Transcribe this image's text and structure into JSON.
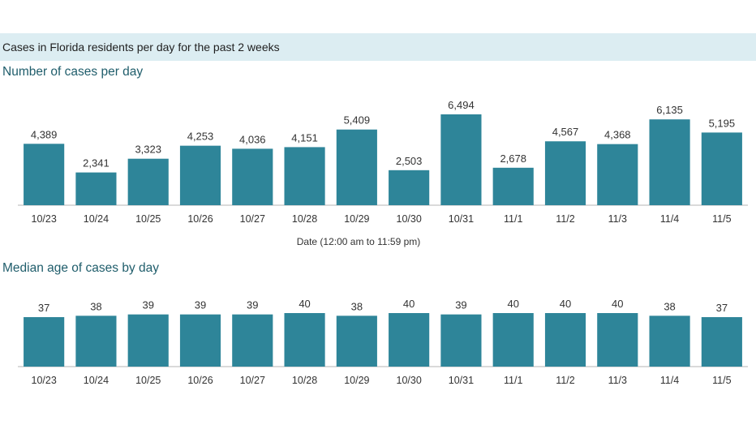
{
  "header": {
    "title": "Cases in Florida residents per day for the past 2 weeks"
  },
  "colors": {
    "bar": "#2e8599",
    "band": "#dcedf2",
    "title": "#1f5d6b",
    "axis": "#b5b5b5"
  },
  "chart_data": [
    {
      "type": "bar",
      "title": "Number of cases per day",
      "xlabel": "Date (12:00 am to 11:59 pm)",
      "ylabel": "",
      "categories": [
        "10/23",
        "10/24",
        "10/25",
        "10/26",
        "10/27",
        "10/28",
        "10/29",
        "10/30",
        "10/31",
        "11/1",
        "11/2",
        "11/3",
        "11/4",
        "11/5"
      ],
      "values": [
        4389,
        2341,
        3323,
        4253,
        4036,
        4151,
        5409,
        2503,
        6494,
        2678,
        4567,
        4368,
        6135,
        5195
      ],
      "value_labels": [
        "4,389",
        "2,341",
        "3,323",
        "4,253",
        "4,036",
        "4,151",
        "5,409",
        "2,503",
        "6,494",
        "2,678",
        "4,567",
        "4,368",
        "6,135",
        "5,195"
      ],
      "ylim": [
        0,
        6494
      ],
      "grid": false
    },
    {
      "type": "bar",
      "title": "Median age of cases by day",
      "xlabel": "",
      "ylabel": "",
      "categories": [
        "10/23",
        "10/24",
        "10/25",
        "10/26",
        "10/27",
        "10/28",
        "10/29",
        "10/30",
        "10/31",
        "11/1",
        "11/2",
        "11/3",
        "11/4",
        "11/5"
      ],
      "values": [
        37,
        38,
        39,
        39,
        39,
        40,
        38,
        40,
        39,
        40,
        40,
        40,
        38,
        37
      ],
      "value_labels": [
        "37",
        "38",
        "39",
        "39",
        "39",
        "40",
        "38",
        "40",
        "39",
        "40",
        "40",
        "40",
        "38",
        "37"
      ],
      "ylim": [
        0,
        40
      ],
      "grid": false
    }
  ]
}
